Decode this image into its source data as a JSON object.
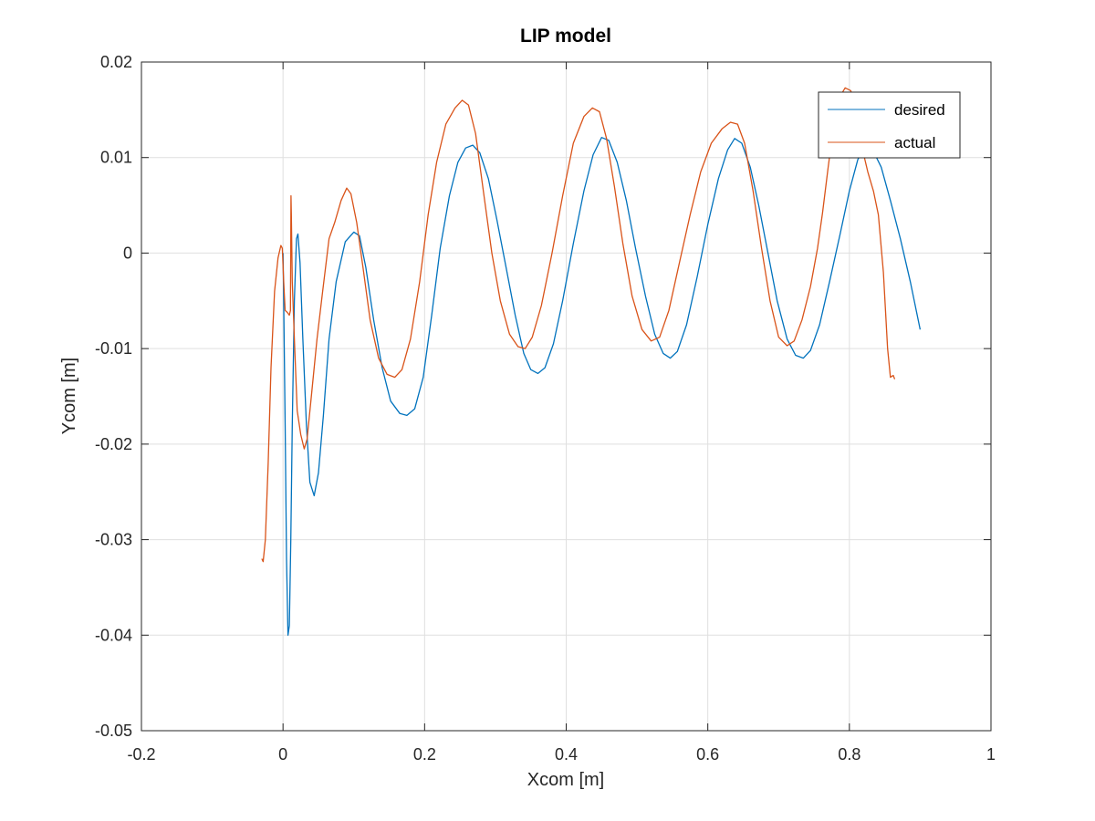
{
  "chart_data": {
    "type": "line",
    "title": "LIP model",
    "xlabel": "Xcom [m]",
    "ylabel": "Ycom [m]",
    "xlim": [
      -0.2,
      1
    ],
    "ylim": [
      -0.05,
      0.02
    ],
    "xticks": [
      -0.2,
      0,
      0.2,
      0.4,
      0.6,
      0.8,
      1
    ],
    "xtick_labels": [
      "-0.2",
      "0",
      "0.2",
      "0.4",
      "0.6",
      "0.8",
      "1"
    ],
    "yticks": [
      -0.05,
      -0.04,
      -0.03,
      -0.02,
      -0.01,
      0,
      0.01,
      0.02
    ],
    "ytick_labels": [
      "-0.05",
      "-0.04",
      "-0.03",
      "-0.02",
      "-0.01",
      "0",
      "0.01",
      "0.02"
    ],
    "grid": true,
    "legend_position": "top-right",
    "series": [
      {
        "name": "desired",
        "color": "#0072BD",
        "points": [
          [
            0.0,
            0.0
          ],
          [
            0.001,
            -0.005
          ],
          [
            0.003,
            -0.018
          ],
          [
            0.005,
            -0.032
          ],
          [
            0.007,
            -0.04
          ],
          [
            0.009,
            -0.039
          ],
          [
            0.011,
            -0.03
          ],
          [
            0.013,
            -0.018
          ],
          [
            0.016,
            -0.005
          ],
          [
            0.019,
            0.0015
          ],
          [
            0.021,
            0.002
          ],
          [
            0.024,
            -0.001
          ],
          [
            0.028,
            -0.009
          ],
          [
            0.033,
            -0.018
          ],
          [
            0.038,
            -0.024
          ],
          [
            0.044,
            -0.0254
          ],
          [
            0.05,
            -0.023
          ],
          [
            0.057,
            -0.017
          ],
          [
            0.065,
            -0.009
          ],
          [
            0.075,
            -0.003
          ],
          [
            0.088,
            0.0012
          ],
          [
            0.1,
            0.0022
          ],
          [
            0.108,
            0.0018
          ],
          [
            0.117,
            -0.0015
          ],
          [
            0.128,
            -0.007
          ],
          [
            0.14,
            -0.012
          ],
          [
            0.152,
            -0.0155
          ],
          [
            0.165,
            -0.0168
          ],
          [
            0.175,
            -0.017
          ],
          [
            0.186,
            -0.0163
          ],
          [
            0.198,
            -0.013
          ],
          [
            0.21,
            -0.0065
          ],
          [
            0.222,
            0.0005
          ],
          [
            0.235,
            0.006
          ],
          [
            0.247,
            0.0095
          ],
          [
            0.258,
            0.011
          ],
          [
            0.268,
            0.0113
          ],
          [
            0.278,
            0.0105
          ],
          [
            0.29,
            0.0078
          ],
          [
            0.302,
            0.0035
          ],
          [
            0.315,
            -0.0015
          ],
          [
            0.328,
            -0.0065
          ],
          [
            0.34,
            -0.0105
          ],
          [
            0.35,
            -0.0122
          ],
          [
            0.36,
            -0.0126
          ],
          [
            0.37,
            -0.012
          ],
          [
            0.382,
            -0.0095
          ],
          [
            0.395,
            -0.005
          ],
          [
            0.41,
            0.001
          ],
          [
            0.425,
            0.0065
          ],
          [
            0.438,
            0.0103
          ],
          [
            0.45,
            0.0121
          ],
          [
            0.46,
            0.0118
          ],
          [
            0.472,
            0.0095
          ],
          [
            0.485,
            0.0055
          ],
          [
            0.498,
            0.0005
          ],
          [
            0.512,
            -0.0045
          ],
          [
            0.525,
            -0.0085
          ],
          [
            0.537,
            -0.0105
          ],
          [
            0.547,
            -0.011
          ],
          [
            0.557,
            -0.0103
          ],
          [
            0.57,
            -0.0075
          ],
          [
            0.585,
            -0.0025
          ],
          [
            0.6,
            0.003
          ],
          [
            0.615,
            0.0078
          ],
          [
            0.628,
            0.0108
          ],
          [
            0.638,
            0.012
          ],
          [
            0.648,
            0.0115
          ],
          [
            0.66,
            0.009
          ],
          [
            0.672,
            0.005
          ],
          [
            0.685,
            0.0
          ],
          [
            0.698,
            -0.005
          ],
          [
            0.712,
            -0.009
          ],
          [
            0.724,
            -0.0107
          ],
          [
            0.735,
            -0.011
          ],
          [
            0.745,
            -0.0102
          ],
          [
            0.758,
            -0.0075
          ],
          [
            0.772,
            -0.003
          ],
          [
            0.787,
            0.002
          ],
          [
            0.8,
            0.0065
          ],
          [
            0.812,
            0.0098
          ],
          [
            0.823,
            0.0112
          ],
          [
            0.833,
            0.0108
          ],
          [
            0.845,
            0.009
          ],
          [
            0.858,
            0.0055
          ],
          [
            0.872,
            0.0015
          ],
          [
            0.886,
            -0.003
          ],
          [
            0.9,
            -0.008
          ]
        ]
      },
      {
        "name": "actual",
        "color": "#D95319",
        "points": [
          [
            -0.03,
            -0.032
          ],
          [
            -0.028,
            -0.0323
          ],
          [
            -0.025,
            -0.03
          ],
          [
            -0.021,
            -0.022
          ],
          [
            -0.017,
            -0.012
          ],
          [
            -0.012,
            -0.004
          ],
          [
            -0.007,
            -0.0005
          ],
          [
            -0.003,
            0.0008
          ],
          [
            -0.001,
            0.0005
          ],
          [
            0.001,
            -0.003
          ],
          [
            0.003,
            -0.006
          ],
          [
            0.006,
            -0.0062
          ],
          [
            0.009,
            -0.0065
          ],
          [
            0.0105,
            -0.006
          ],
          [
            0.0112,
            0.006
          ],
          [
            0.0118,
            0.004
          ],
          [
            0.013,
            -0.003
          ],
          [
            0.016,
            -0.009
          ],
          [
            0.02,
            -0.0165
          ],
          [
            0.025,
            -0.019
          ],
          [
            0.03,
            -0.0205
          ],
          [
            0.034,
            -0.0195
          ],
          [
            0.04,
            -0.015
          ],
          [
            0.048,
            -0.009
          ],
          [
            0.056,
            -0.004
          ],
          [
            0.065,
            0.0015
          ],
          [
            0.073,
            0.0032
          ],
          [
            0.082,
            0.0055
          ],
          [
            0.09,
            0.0068
          ],
          [
            0.096,
            0.0062
          ],
          [
            0.104,
            0.0032
          ],
          [
            0.113,
            -0.0015
          ],
          [
            0.123,
            -0.007
          ],
          [
            0.135,
            -0.011
          ],
          [
            0.147,
            -0.0127
          ],
          [
            0.158,
            -0.013
          ],
          [
            0.168,
            -0.0122
          ],
          [
            0.18,
            -0.009
          ],
          [
            0.193,
            -0.003
          ],
          [
            0.205,
            0.004
          ],
          [
            0.217,
            0.0095
          ],
          [
            0.23,
            0.0135
          ],
          [
            0.243,
            0.0152
          ],
          [
            0.253,
            0.016
          ],
          [
            0.262,
            0.0155
          ],
          [
            0.272,
            0.0125
          ],
          [
            0.283,
            0.0065
          ],
          [
            0.295,
            0.0
          ],
          [
            0.307,
            -0.005
          ],
          [
            0.32,
            -0.0085
          ],
          [
            0.332,
            -0.0098
          ],
          [
            0.342,
            -0.01
          ],
          [
            0.352,
            -0.0088
          ],
          [
            0.365,
            -0.0055
          ],
          [
            0.38,
            0.0
          ],
          [
            0.395,
            0.006
          ],
          [
            0.41,
            0.0115
          ],
          [
            0.425,
            0.0143
          ],
          [
            0.437,
            0.0152
          ],
          [
            0.447,
            0.0148
          ],
          [
            0.457,
            0.012
          ],
          [
            0.468,
            0.007
          ],
          [
            0.48,
            0.001
          ],
          [
            0.493,
            -0.0045
          ],
          [
            0.507,
            -0.008
          ],
          [
            0.52,
            -0.0092
          ],
          [
            0.532,
            -0.0088
          ],
          [
            0.545,
            -0.006
          ],
          [
            0.56,
            -0.001
          ],
          [
            0.575,
            0.004
          ],
          [
            0.59,
            0.0085
          ],
          [
            0.605,
            0.0115
          ],
          [
            0.62,
            0.013
          ],
          [
            0.632,
            0.0137
          ],
          [
            0.642,
            0.0135
          ],
          [
            0.652,
            0.0115
          ],
          [
            0.664,
            0.0065
          ],
          [
            0.676,
            0.0005
          ],
          [
            0.688,
            -0.005
          ],
          [
            0.7,
            -0.0088
          ],
          [
            0.712,
            -0.0097
          ],
          [
            0.722,
            -0.0092
          ],
          [
            0.733,
            -0.007
          ],
          [
            0.745,
            -0.0035
          ],
          [
            0.755,
            0.0005
          ],
          [
            0.762,
            0.0042
          ],
          [
            0.77,
            0.009
          ],
          [
            0.778,
            0.0135
          ],
          [
            0.786,
            0.0163
          ],
          [
            0.794,
            0.0173
          ],
          [
            0.802,
            0.017
          ],
          [
            0.81,
            0.0145
          ],
          [
            0.818,
            0.011
          ],
          [
            0.826,
            0.0085
          ],
          [
            0.834,
            0.0065
          ],
          [
            0.841,
            0.004
          ],
          [
            0.848,
            -0.002
          ],
          [
            0.854,
            -0.01
          ],
          [
            0.858,
            -0.013
          ],
          [
            0.862,
            -0.0128
          ],
          [
            0.864,
            -0.0132
          ]
        ]
      }
    ]
  }
}
